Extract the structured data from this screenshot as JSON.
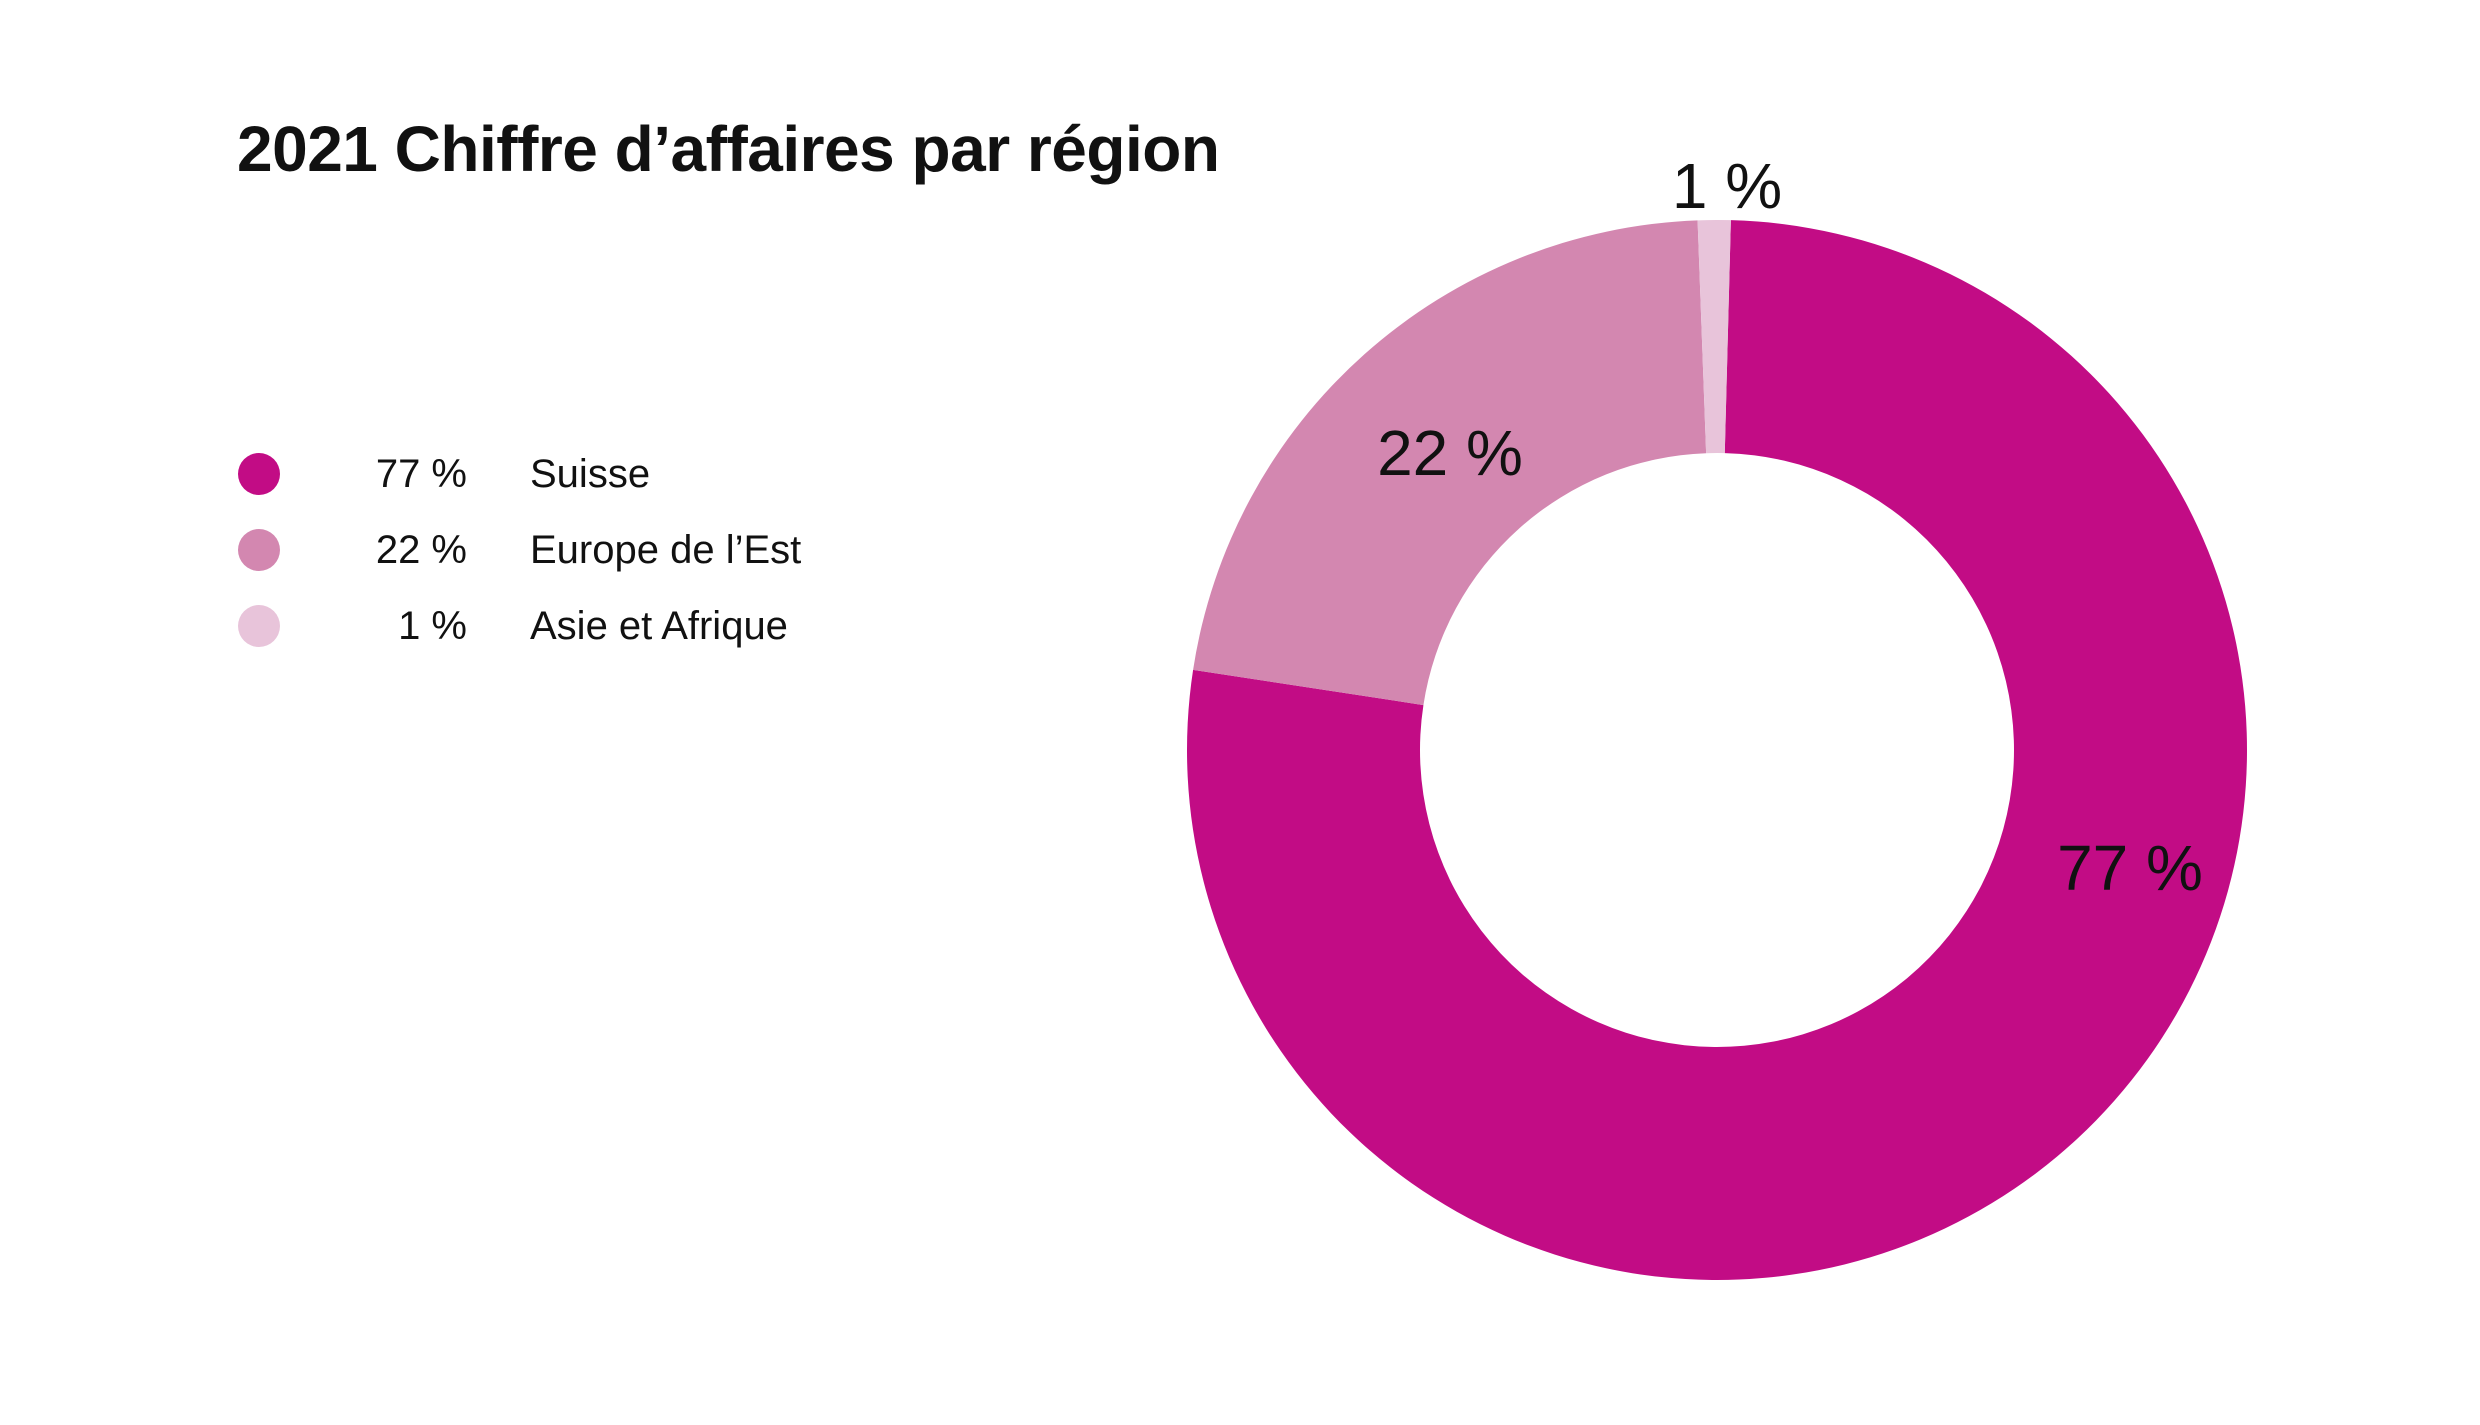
{
  "chart_data": {
    "type": "pie",
    "variant": "donut",
    "title": "2021 Chiffre d’affaires par région",
    "categories": [
      "Suisse",
      "Europe de l’Est",
      "Asie et Afrique"
    ],
    "values": [
      77,
      22,
      1
    ],
    "value_labels": [
      "77 %",
      "22 %",
      "1 %"
    ],
    "colors": [
      "#c20c85",
      "#d387b0",
      "#e8c4da"
    ],
    "legend_position": "left",
    "legend": [
      {
        "value": "77 %",
        "label": "Suisse"
      },
      {
        "value": "22 %",
        "label": "Europe de l’Est"
      },
      {
        "value": "1 %",
        "label": "Asie et Afrique"
      }
    ]
  }
}
